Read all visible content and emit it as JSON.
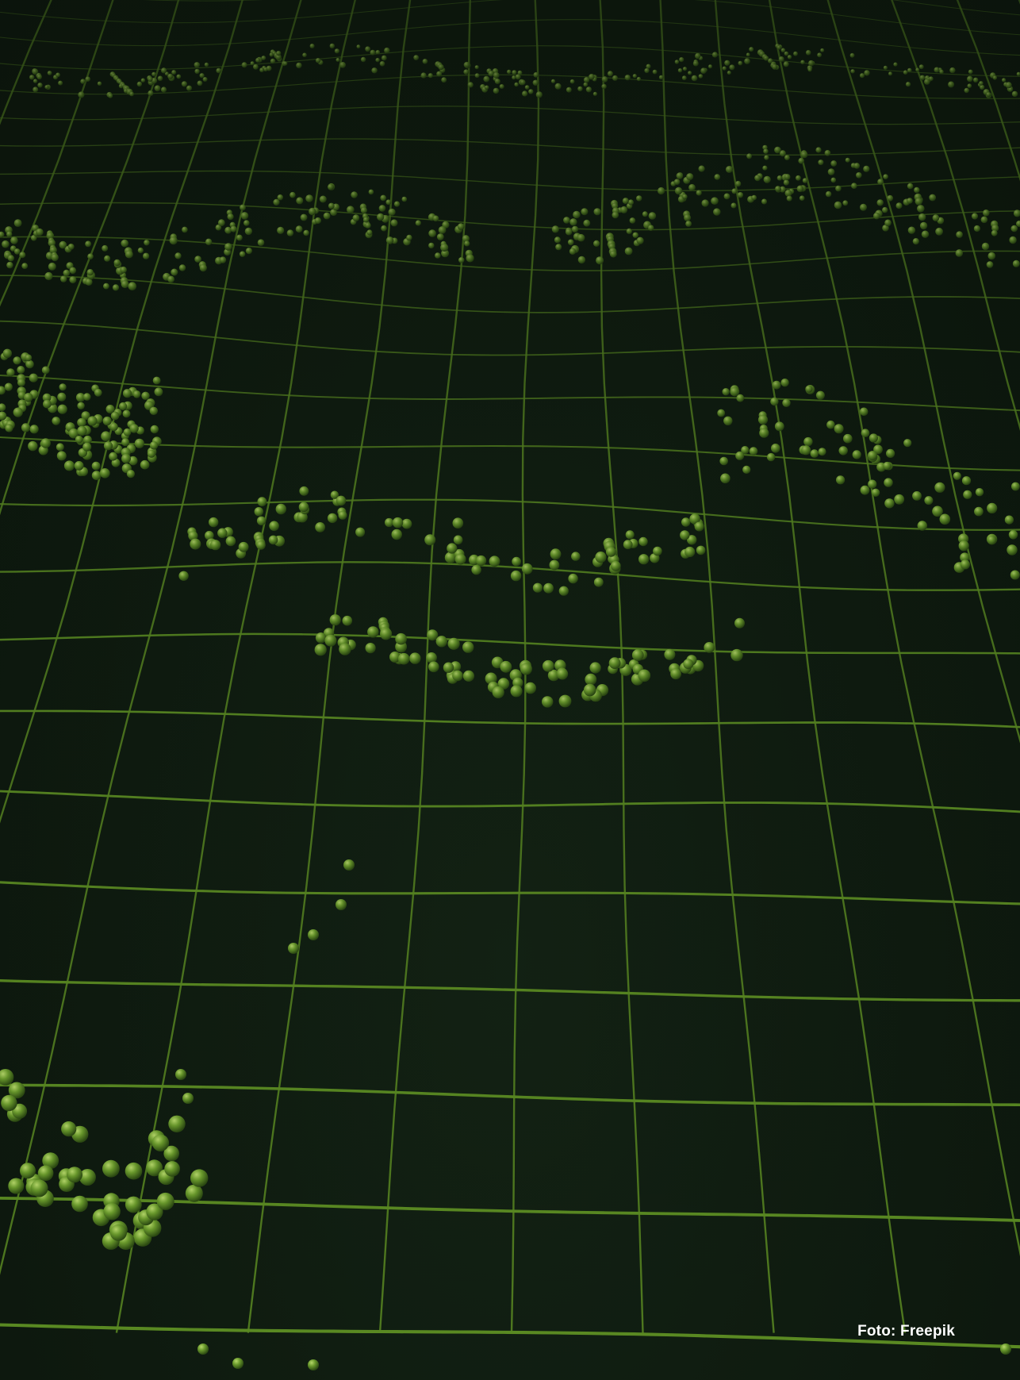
{
  "photo": {
    "description_icon": "green-grid-surface-with-spheres",
    "grid_color": "#5a8a22",
    "sphere_color": "#6fa032",
    "background_color": "#0f1a10"
  },
  "credit": {
    "text": "Foto: Freepik"
  }
}
